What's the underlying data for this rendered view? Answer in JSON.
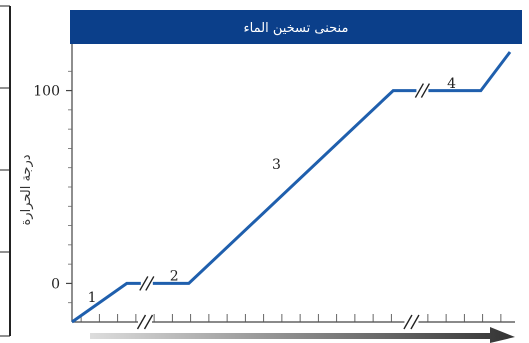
{
  "chart_data": {
    "type": "line",
    "title": "منحنى تسخين الماء",
    "ylabel": "درجة الحرارة",
    "xlabel": "",
    "yticks": [
      0,
      100
    ],
    "ylim": [
      -20,
      120
    ],
    "grid": false,
    "legend": "none",
    "x_axis_breaks": true,
    "series": [
      {
        "points": [
          [
            0,
            -20
          ],
          [
            1.5,
            0
          ],
          [
            3.2,
            0
          ],
          [
            8.8,
            100
          ],
          [
            11.2,
            100
          ],
          [
            12,
            120
          ]
        ]
      }
    ],
    "segment_labels": [
      {
        "text": "1",
        "x": 0.55,
        "y": -7
      },
      {
        "text": "2",
        "x": 2.8,
        "y": 4
      },
      {
        "text": "3",
        "x": 5.6,
        "y": 62
      },
      {
        "text": "4",
        "x": 10.4,
        "y": 104
      }
    ],
    "colors": {
      "line": "#1f5fad",
      "title_bar": "#0b3f8a",
      "arrow": "#333333"
    }
  }
}
